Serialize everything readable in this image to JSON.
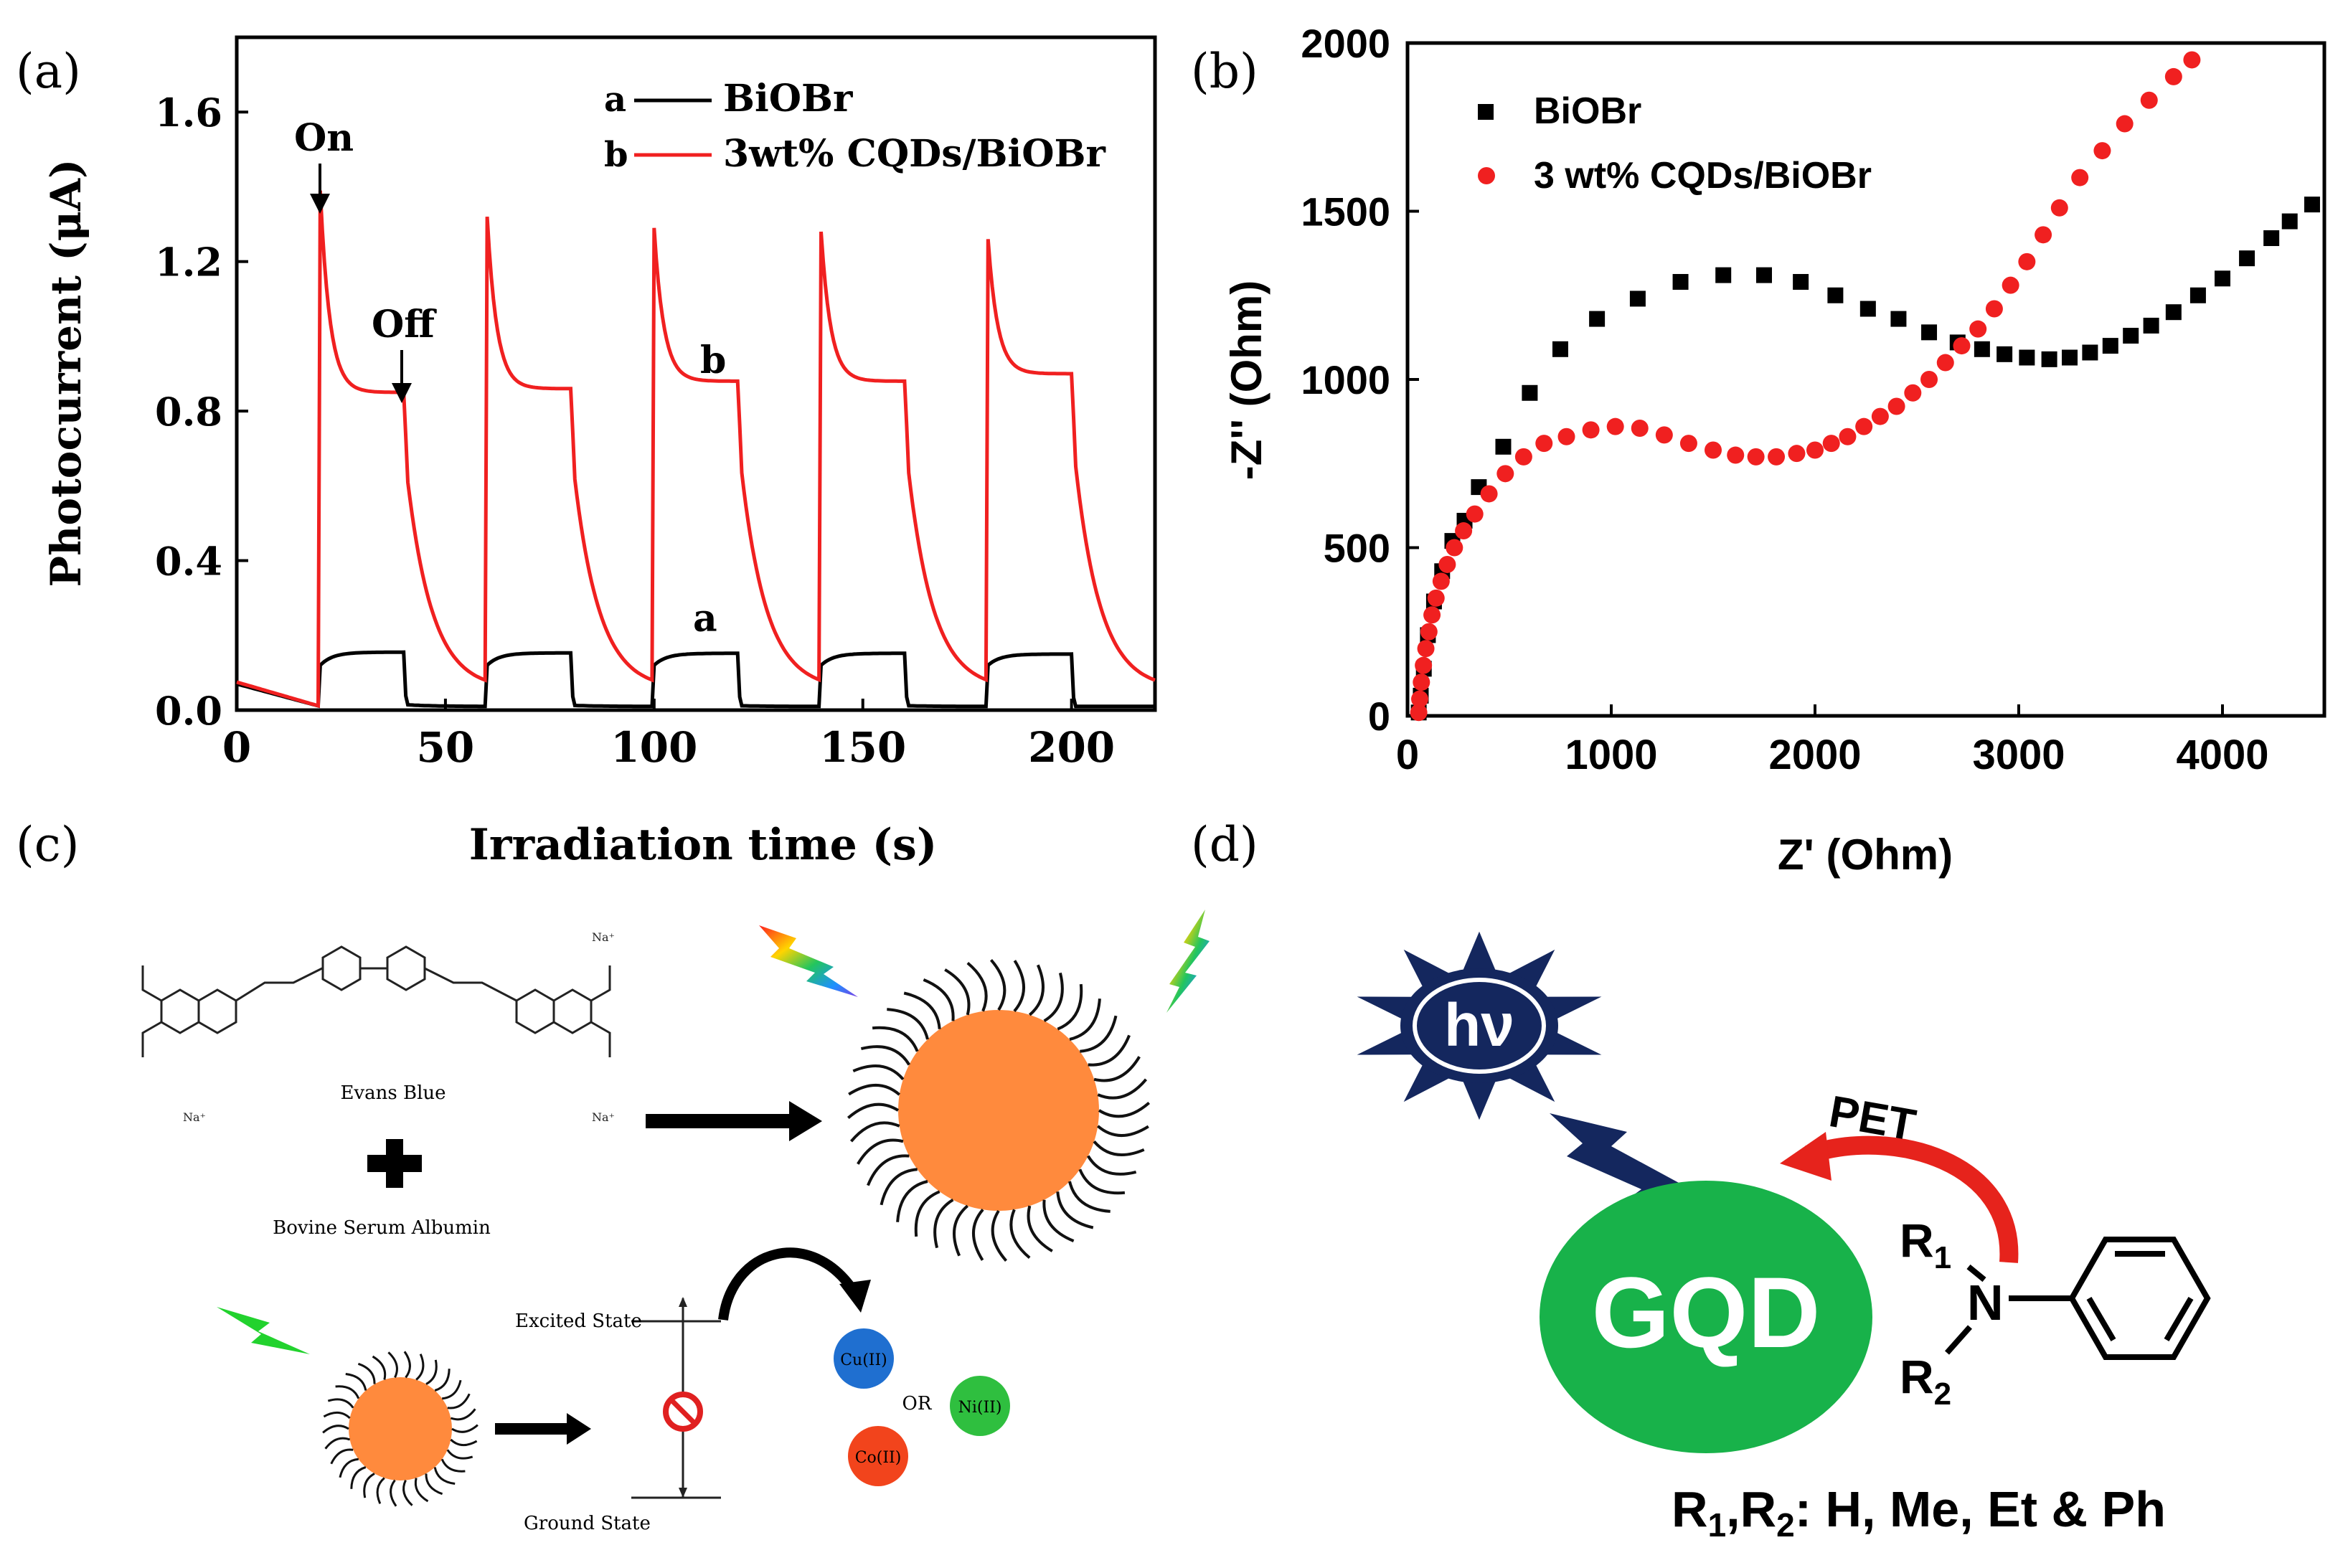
{
  "panel_labels": {
    "a": "(a)",
    "b": "(b)",
    "c": "(c)",
    "d": "(d)"
  },
  "colors": {
    "black": "#000000",
    "red": "#f02020",
    "orange": "#ff8a3d",
    "green": "#18b24a",
    "navy": "#14275e",
    "cu": "#1f6fd0",
    "ni": "#2fbf3f",
    "co": "#f2441c",
    "pet_red": "#e6231c"
  },
  "chart_data": [
    {
      "type": "line",
      "title": "",
      "xlabel": "Irradiation time (s)",
      "ylabel": "Photocurrent (μA)",
      "xlim": [
        0,
        220
      ],
      "ylim": [
        0.0,
        1.8
      ],
      "xticks": [
        0,
        50,
        100,
        150,
        200
      ],
      "yticks": [
        0.0,
        0.4,
        0.8,
        1.2,
        1.6
      ],
      "ytick_labels": [
        "0.0",
        "0.4",
        "0.8",
        "1.2",
        "1.6"
      ],
      "light_on_times": [
        20,
        60,
        100,
        140,
        180
      ],
      "light_period_s": 20,
      "legend_position": "top-right",
      "legend": [
        {
          "letter": "a",
          "name": "BiOBr"
        },
        {
          "letter": "b",
          "name": "3wt% CQDs/BiOBr"
        }
      ],
      "annotations": [
        "On",
        "Off",
        "a",
        "b"
      ],
      "series": [
        {
          "name": "BiOBr",
          "letter": "a",
          "color": "#000000",
          "on_start": 0.12,
          "on_end": [
            0.155,
            0.153,
            0.152,
            0.152,
            0.15
          ],
          "dark_min": 0.01
        },
        {
          "name": "3wt% CQDs/BiOBr",
          "letter": "b",
          "color": "#f02020",
          "peaks": [
            1.39,
            1.32,
            1.29,
            1.28,
            1.26
          ],
          "plateaus": [
            0.85,
            0.86,
            0.88,
            0.88,
            0.9
          ],
          "dark_min": 0.01
        }
      ]
    },
    {
      "type": "scatter",
      "title": "",
      "xlabel": "Z' (Ohm)",
      "ylabel": "-Z'' (Ohm)",
      "xlim": [
        0,
        4500
      ],
      "ylim": [
        0,
        2000
      ],
      "xticks": [
        0,
        1000,
        2000,
        3000,
        4000
      ],
      "yticks": [
        0,
        500,
        1000,
        1500,
        2000
      ],
      "legend_position": "top-left",
      "series": [
        {
          "name": "BiOBr",
          "marker": "square",
          "color": "#000000",
          "x": [
            55,
            65,
            80,
            100,
            130,
            170,
            220,
            280,
            350,
            470,
            600,
            750,
            930,
            1130,
            1340,
            1550,
            1750,
            1930,
            2100,
            2260,
            2410,
            2560,
            2700,
            2820,
            2930,
            3040,
            3150,
            3250,
            3350,
            3450,
            3550,
            3650,
            3760,
            3880,
            4000,
            4120,
            4240,
            4330,
            4440
          ],
          "y": [
            10,
            60,
            140,
            240,
            340,
            430,
            520,
            580,
            680,
            800,
            960,
            1090,
            1180,
            1240,
            1290,
            1310,
            1310,
            1290,
            1250,
            1210,
            1180,
            1140,
            1110,
            1090,
            1075,
            1065,
            1060,
            1065,
            1080,
            1100,
            1130,
            1160,
            1200,
            1250,
            1300,
            1360,
            1420,
            1470,
            1520
          ]
        },
        {
          "name": "3 wt% CQDs/BiOBr",
          "marker": "circle",
          "color": "#f02020",
          "x": [
            55,
            60,
            68,
            78,
            90,
            105,
            120,
            140,
            165,
            195,
            230,
            275,
            330,
            400,
            480,
            570,
            670,
            780,
            900,
            1020,
            1140,
            1260,
            1380,
            1500,
            1610,
            1710,
            1810,
            1910,
            2000,
            2080,
            2160,
            2240,
            2320,
            2400,
            2480,
            2560,
            2640,
            2720,
            2800,
            2880,
            2960,
            3040,
            3120,
            3200,
            3300,
            3410,
            3520,
            3640,
            3760,
            3850
          ],
          "y": [
            10,
            50,
            100,
            150,
            200,
            250,
            300,
            350,
            400,
            450,
            500,
            550,
            600,
            660,
            720,
            770,
            810,
            830,
            850,
            860,
            855,
            835,
            810,
            790,
            775,
            770,
            770,
            780,
            790,
            810,
            830,
            860,
            890,
            920,
            960,
            1000,
            1050,
            1100,
            1150,
            1210,
            1280,
            1350,
            1430,
            1510,
            1600,
            1680,
            1760,
            1830,
            1900,
            1950
          ]
        }
      ]
    }
  ],
  "panel_c": {
    "dye_name": "Evans Blue",
    "protein_name": "Bovine Serum Albumin",
    "excited_state": "Excited State",
    "ground_state": "Ground State",
    "metals": [
      "Cu(II)",
      "Co(II)",
      "Ni(II)"
    ],
    "or_label": "OR",
    "na_label": "Na⁺"
  },
  "panel_d": {
    "sun_label": "hν",
    "dot_label": "GQD",
    "pet_label": "PET",
    "r1": "R",
    "r1_sub": "1",
    "r2": "R",
    "r2_sub": "2",
    "n_atom": "N",
    "caption_r1": "R",
    "caption_sub1": "1",
    "caption_comma": ",R",
    "caption_sub2": "2",
    "caption_rest": ": H, Me, Et & Ph"
  }
}
